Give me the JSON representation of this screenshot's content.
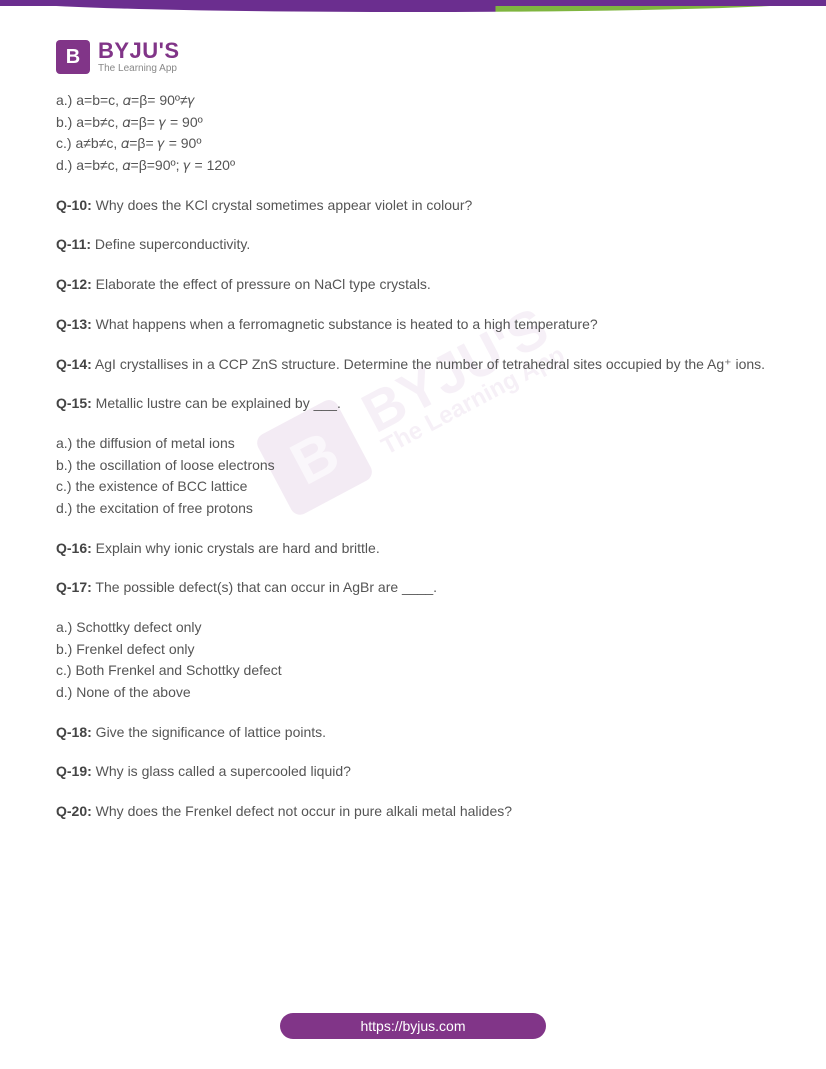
{
  "logo": {
    "badge_letter": "B",
    "name": "BYJU'S",
    "tagline": "The Learning App",
    "badge_bg": "#813588",
    "name_color": "#813588",
    "tag_color": "#888888"
  },
  "options_top": [
    "a.) a=b=c, 𝛼=β= 90º≠𝛾",
    "b.) a=b≠c, 𝛼=β= 𝛾 = 90º",
    "c.) a≠b≠c, 𝛼=β= 𝛾 = 90º",
    "d.) a=b≠c, 𝛼=β=90º; 𝛾 = 120º"
  ],
  "questions": [
    {
      "label": "Q-10:",
      "text": " Why does the KCl crystal sometimes appear violet in colour?"
    },
    {
      "label": "Q-11:",
      "text": " Define superconductivity."
    },
    {
      "label": "Q-12:",
      "text": " Elaborate the effect of pressure on NaCl type crystals."
    },
    {
      "label": "Q-13:",
      "text": " What happens when a ferromagnetic substance is heated to a high temperature?"
    },
    {
      "label": "Q-14:",
      "text": " AgI crystallises in a CCP ZnS structure. Determine the number of tetrahedral sites occupied by the Ag⁺ ions."
    },
    {
      "label": "Q-15:",
      "text": " Metallic lustre can be explained by ___."
    }
  ],
  "options_q15": [
    "a.) the diffusion of metal ions",
    "b.) the oscillation of loose electrons",
    "c.) the existence of BCC lattice",
    "d.) the excitation of free protons"
  ],
  "questions2": [
    {
      "label": "Q-16:",
      "text": " Explain why ionic crystals are hard and brittle."
    },
    {
      "label": "Q-17:",
      "text": " The possible defect(s) that can occur in AgBr are ____."
    }
  ],
  "options_q17": [
    "a.) Schottky defect only",
    "b.) Frenkel defect only",
    "c.) Both Frenkel and Schottky defect",
    "d.) None of the above"
  ],
  "questions3": [
    {
      "label": "Q-18:",
      "text": " Give the significance of lattice points."
    },
    {
      "label": "Q-19:",
      "text": " Why is glass called a supercooled liquid?"
    },
    {
      "label": "Q-20:",
      "text": " Why does the Frenkel defect not occur in  pure alkali metal halides?"
    }
  ],
  "footer": {
    "url": "https://byjus.com",
    "bg": "#813588"
  },
  "watermark": {
    "name": "BYJU'S",
    "tag": "The Learning App"
  },
  "colors": {
    "text": "#555555",
    "label": "#444444",
    "top_bar_purple": "#6b2e8f",
    "top_bar_green": "#7fb53f"
  }
}
